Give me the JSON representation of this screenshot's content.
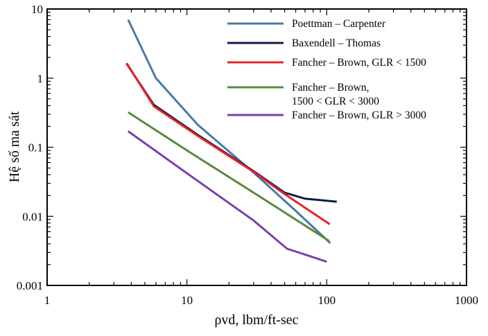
{
  "chart_data": {
    "type": "line",
    "xlabel": "ρvd, lbm/ft-sec",
    "ylabel": "Hệ số ma sát",
    "x_scale": "log",
    "y_scale": "log",
    "xlim": [
      1,
      1000
    ],
    "ylim": [
      0.001,
      10
    ],
    "x_ticks": [
      "1",
      "10",
      "100",
      "1000"
    ],
    "y_ticks": [
      "0.001",
      "0.01",
      "0.1",
      "1",
      "10"
    ],
    "grid": false,
    "legend_position": "top-right",
    "series": [
      {
        "name": "Poettman – Carpenter",
        "color": "#4a78a8",
        "points": [
          [
            3.8,
            7.0
          ],
          [
            6.0,
            1.0
          ],
          [
            12,
            0.21
          ],
          [
            30,
            0.043
          ],
          [
            60,
            0.012
          ],
          [
            106,
            0.0041
          ]
        ]
      },
      {
        "name": "Baxendell – Thomas",
        "color": "#0d1b4b",
        "points": [
          [
            3.7,
            1.62
          ],
          [
            5.8,
            0.41
          ],
          [
            12,
            0.15
          ],
          [
            30,
            0.045
          ],
          [
            50,
            0.022
          ],
          [
            70,
            0.018
          ],
          [
            118,
            0.0163
          ]
        ]
      },
      {
        "name": "Fancher – Brown, GLR < 1500",
        "color": "#e8231f",
        "points": [
          [
            3.7,
            1.65
          ],
          [
            5.8,
            0.39
          ],
          [
            12,
            0.145
          ],
          [
            30,
            0.044
          ],
          [
            50,
            0.021
          ],
          [
            105,
            0.0077
          ]
        ]
      },
      {
        "name": [
          "Fancher – Brown,",
          "1500 < GLR < 3000"
        ],
        "color": "#5a8a3a",
        "points": [
          [
            3.8,
            0.32
          ],
          [
            10,
            0.09
          ],
          [
            30,
            0.022
          ],
          [
            104,
            0.0044
          ]
        ]
      },
      {
        "name": "Fancher – Brown, GLR > 3000",
        "color": "#7a3fb0",
        "points": [
          [
            3.8,
            0.17
          ],
          [
            10,
            0.042
          ],
          [
            30,
            0.0087
          ],
          [
            52,
            0.0034
          ],
          [
            70,
            0.0028
          ],
          [
            100,
            0.0022
          ]
        ]
      }
    ]
  }
}
